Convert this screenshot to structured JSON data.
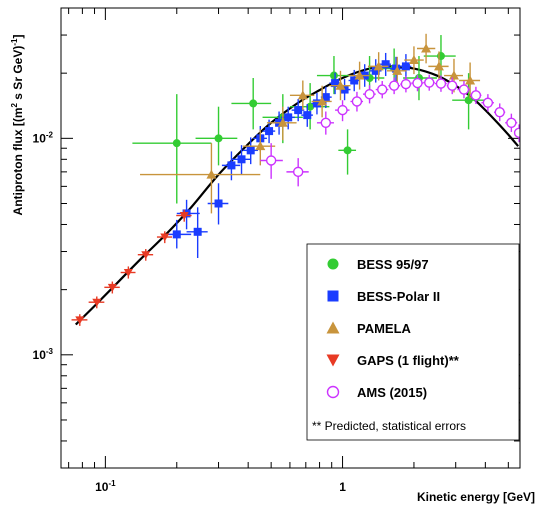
{
  "chart_data": {
    "type": "scatter",
    "title": "",
    "xlabel": "Kinetic energy [GeV]",
    "ylabel_main": "Antiproton flux [(m",
    "ylabel_sup": "2",
    "ylabel_tail": " s Sr GeV)",
    "ylabel_sup2": "-1",
    "ylabel_end": "]",
    "x_scale": "log",
    "y_scale": "log",
    "xlim": [
      0.065,
      5.6
    ],
    "ylim": [
      0.0003,
      0.04
    ],
    "x_ticks": [
      {
        "value": 0.1,
        "base": "10",
        "exp": "-1"
      },
      {
        "value": 1,
        "base": "1",
        "exp": ""
      }
    ],
    "y_ticks": [
      {
        "value": 0.01,
        "base": "10",
        "exp": "-2"
      },
      {
        "value": 0.001,
        "base": "10",
        "exp": "-3"
      }
    ],
    "legend_placement": "bottom-right",
    "legend_note": "** Predicted, statistical errors",
    "model_curve": {
      "color": "#000000",
      "x": [
        0.075,
        0.09,
        0.11,
        0.14,
        0.18,
        0.23,
        0.3,
        0.4,
        0.5,
        0.65,
        0.8,
        1.0,
        1.3,
        1.6,
        2.0,
        2.5,
        3.0,
        3.5,
        4.0,
        4.5,
        5.0,
        5.5
      ],
      "y": [
        0.00138,
        0.00168,
        0.0021,
        0.00275,
        0.0036,
        0.0048,
        0.0068,
        0.0094,
        0.0118,
        0.0146,
        0.0167,
        0.019,
        0.021,
        0.0215,
        0.021,
        0.0195,
        0.0175,
        0.0155,
        0.0135,
        0.0118,
        0.0104,
        0.0092
      ]
    },
    "series": [
      {
        "name": "BESS 95/97",
        "marker": "circle",
        "color": "#33cc33",
        "points": [
          {
            "x": 0.2,
            "y": 0.0095,
            "xerr": [
              0.13,
              0.28
            ],
            "yerr": [
              0.005,
              0.016
            ]
          },
          {
            "x": 0.3,
            "y": 0.01,
            "xerr": [
              0.24,
              0.36
            ],
            "yerr": [
              0.0075,
              0.014
            ]
          },
          {
            "x": 0.42,
            "y": 0.0145,
            "xerr": [
              0.34,
              0.5
            ],
            "yerr": [
              0.011,
              0.019
            ]
          },
          {
            "x": 0.56,
            "y": 0.0125,
            "xerr": [
              0.46,
              0.68
            ],
            "yerr": [
              0.0095,
              0.016
            ]
          },
          {
            "x": 0.73,
            "y": 0.014,
            "xerr": [
              0.6,
              0.88
            ],
            "yerr": [
              0.011,
              0.018
            ]
          },
          {
            "x": 0.92,
            "y": 0.0195,
            "xerr": [
              0.78,
              1.08
            ],
            "yerr": [
              0.016,
              0.024
            ]
          },
          {
            "x": 1.05,
            "y": 0.0088,
            "xerr": [
              0.96,
              1.14
            ],
            "yerr": [
              0.0068,
              0.011
            ]
          },
          {
            "x": 1.3,
            "y": 0.019,
            "xerr": [
              1.1,
              1.5
            ],
            "yerr": [
              0.015,
              0.024
            ]
          },
          {
            "x": 1.65,
            "y": 0.021,
            "xerr": [
              1.4,
              1.9
            ],
            "yerr": [
              0.017,
              0.026
            ]
          },
          {
            "x": 2.1,
            "y": 0.019,
            "xerr": [
              1.8,
              2.5
            ],
            "yerr": [
              0.015,
              0.024
            ]
          },
          {
            "x": 2.6,
            "y": 0.024,
            "xerr": [
              2.2,
              3.0
            ],
            "yerr": [
              0.019,
              0.03
            ]
          },
          {
            "x": 3.4,
            "y": 0.015,
            "xerr": [
              2.9,
              4.0
            ],
            "yerr": [
              0.011,
              0.02
            ]
          }
        ]
      },
      {
        "name": "BESS-Polar II",
        "marker": "square",
        "color": "#1a3cff",
        "points": [
          {
            "x": 0.2,
            "y": 0.0036,
            "xerr": [
              0.18,
              0.23
            ],
            "yerr": [
              0.0031,
              0.0042
            ]
          },
          {
            "x": 0.22,
            "y": 0.0045,
            "xerr": [
              0.2,
              0.25
            ],
            "yerr": [
              0.0038,
              0.0052
            ]
          },
          {
            "x": 0.245,
            "y": 0.0037,
            "xerr": [
              0.22,
              0.27
            ],
            "yerr": [
              0.0028,
              0.0048
            ]
          },
          {
            "x": 0.3,
            "y": 0.005,
            "xerr": [
              0.27,
              0.33
            ],
            "yerr": [
              0.004,
              0.0062
            ]
          },
          {
            "x": 0.34,
            "y": 0.0075,
            "xerr": [
              0.31,
              0.37
            ],
            "yerr": [
              0.0064,
              0.0087
            ]
          },
          {
            "x": 0.375,
            "y": 0.008,
            "xerr": [
              0.34,
              0.41
            ],
            "yerr": [
              0.0068,
              0.0093
            ]
          },
          {
            "x": 0.41,
            "y": 0.0088,
            "xerr": [
              0.38,
              0.44
            ],
            "yerr": [
              0.0076,
              0.0101
            ]
          },
          {
            "x": 0.45,
            "y": 0.01,
            "xerr": [
              0.42,
              0.48
            ],
            "yerr": [
              0.0087,
              0.0114
            ]
          },
          {
            "x": 0.49,
            "y": 0.0108,
            "xerr": [
              0.46,
              0.52
            ],
            "yerr": [
              0.0095,
              0.0122
            ]
          },
          {
            "x": 0.54,
            "y": 0.0118,
            "xerr": [
              0.51,
              0.57
            ],
            "yerr": [
              0.0104,
              0.0133
            ]
          },
          {
            "x": 0.59,
            "y": 0.0125,
            "xerr": [
              0.55,
              0.63
            ],
            "yerr": [
              0.011,
              0.014
            ]
          },
          {
            "x": 0.65,
            "y": 0.0135,
            "xerr": [
              0.61,
              0.69
            ],
            "yerr": [
              0.012,
              0.0152
            ]
          },
          {
            "x": 0.71,
            "y": 0.0128,
            "xerr": [
              0.67,
              0.75
            ],
            "yerr": [
              0.0113,
              0.0144
            ]
          },
          {
            "x": 0.78,
            "y": 0.0145,
            "xerr": [
              0.74,
              0.82
            ],
            "yerr": [
              0.0129,
              0.0162
            ]
          },
          {
            "x": 0.85,
            "y": 0.0155,
            "xerr": [
              0.81,
              0.9
            ],
            "yerr": [
              0.0138,
              0.0173
            ]
          },
          {
            "x": 0.93,
            "y": 0.018,
            "xerr": [
              0.88,
              0.98
            ],
            "yerr": [
              0.016,
              0.0201
            ]
          },
          {
            "x": 1.02,
            "y": 0.0168,
            "xerr": [
              0.97,
              1.08
            ],
            "yerr": [
              0.015,
              0.0188
            ]
          },
          {
            "x": 1.12,
            "y": 0.0185,
            "xerr": [
              1.06,
              1.18
            ],
            "yerr": [
              0.0165,
              0.0207
            ]
          },
          {
            "x": 1.24,
            "y": 0.0195,
            "xerr": [
              1.18,
              1.3
            ],
            "yerr": [
              0.0173,
              0.022
            ]
          },
          {
            "x": 1.38,
            "y": 0.0205,
            "xerr": [
              1.3,
              1.46
            ],
            "yerr": [
              0.0181,
              0.0232
            ]
          },
          {
            "x": 1.52,
            "y": 0.022,
            "xerr": [
              1.44,
              1.6
            ],
            "yerr": [
              0.0194,
              0.0248
            ]
          },
          {
            "x": 1.68,
            "y": 0.021,
            "xerr": [
              1.58,
              1.78
            ],
            "yerr": [
              0.0184,
              0.0238
            ]
          },
          {
            "x": 1.85,
            "y": 0.0215,
            "xerr": [
              1.75,
              1.95
            ],
            "yerr": [
              0.0187,
              0.0245
            ]
          }
        ]
      },
      {
        "name": "PAMELA",
        "marker": "triangle-up",
        "color": "#c8943c",
        "points": [
          {
            "x": 0.28,
            "y": 0.0068,
            "xerr": [
              0.14,
              0.45
            ],
            "yerr": [
              0.0045,
              0.0095
            ]
          },
          {
            "x": 0.45,
            "y": 0.0092,
            "xerr": [
              0.38,
              0.52
            ],
            "yerr": [
              0.0075,
              0.011
            ]
          },
          {
            "x": 0.56,
            "y": 0.0118,
            "xerr": [
              0.48,
              0.64
            ],
            "yerr": [
              0.0098,
              0.014
            ]
          },
          {
            "x": 0.68,
            "y": 0.0158,
            "xerr": [
              0.6,
              0.76
            ],
            "yerr": [
              0.0135,
              0.0185
            ]
          },
          {
            "x": 0.82,
            "y": 0.0148,
            "xerr": [
              0.74,
              0.9
            ],
            "yerr": [
              0.0125,
              0.0175
            ]
          },
          {
            "x": 0.98,
            "y": 0.0175,
            "xerr": [
              0.88,
              1.08
            ],
            "yerr": [
              0.015,
              0.0205
            ]
          },
          {
            "x": 1.18,
            "y": 0.0195,
            "xerr": [
              1.06,
              1.3
            ],
            "yerr": [
              0.0168,
              0.0226
            ]
          },
          {
            "x": 1.42,
            "y": 0.0215,
            "xerr": [
              1.28,
              1.56
            ],
            "yerr": [
              0.0185,
              0.025
            ]
          },
          {
            "x": 1.7,
            "y": 0.0205,
            "xerr": [
              1.54,
              1.86
            ],
            "yerr": [
              0.0176,
              0.0238
            ]
          },
          {
            "x": 2.0,
            "y": 0.023,
            "xerr": [
              1.82,
              2.2
            ],
            "yerr": [
              0.0198,
              0.0266
            ]
          },
          {
            "x": 2.25,
            "y": 0.026,
            "xerr": [
              2.06,
              2.46
            ],
            "yerr": [
              0.0222,
              0.0304
            ]
          },
          {
            "x": 2.55,
            "y": 0.0215,
            "xerr": [
              2.3,
              2.8
            ],
            "yerr": [
              0.0183,
              0.0252
            ]
          },
          {
            "x": 2.95,
            "y": 0.0195,
            "xerr": [
              2.68,
              3.22
            ],
            "yerr": [
              0.0163,
              0.0233
            ]
          },
          {
            "x": 3.45,
            "y": 0.0185,
            "xerr": [
              3.1,
              3.8
            ],
            "yerr": [
              0.0153,
              0.0224
            ]
          }
        ]
      },
      {
        "name": "GAPS (1 flight)**",
        "marker": "triangle-down",
        "color": "#e83a24",
        "points": [
          {
            "x": 0.078,
            "y": 0.00145,
            "xerr": [
              0.072,
              0.084
            ],
            "yerr": [
              0.00136,
              0.00154
            ]
          },
          {
            "x": 0.092,
            "y": 0.00175,
            "xerr": [
              0.085,
              0.099
            ],
            "yerr": [
              0.00164,
              0.00186
            ]
          },
          {
            "x": 0.107,
            "y": 0.00205,
            "xerr": [
              0.099,
              0.115
            ],
            "yerr": [
              0.00192,
              0.00218
            ]
          },
          {
            "x": 0.125,
            "y": 0.0024,
            "xerr": [
              0.116,
              0.134
            ],
            "yerr": [
              0.00225,
              0.00256
            ]
          },
          {
            "x": 0.148,
            "y": 0.0029,
            "xerr": [
              0.137,
              0.159
            ],
            "yerr": [
              0.00272,
              0.00308
            ]
          },
          {
            "x": 0.178,
            "y": 0.0035,
            "xerr": [
              0.165,
              0.191
            ],
            "yerr": [
              0.00328,
              0.00372
            ]
          },
          {
            "x": 0.215,
            "y": 0.0044,
            "xerr": [
              0.199,
              0.231
            ],
            "yerr": [
              0.00412,
              0.00468
            ]
          }
        ]
      },
      {
        "name": "AMS (2015)",
        "marker": "circle-open",
        "color": "#cc33ff",
        "points": [
          {
            "x": 0.5,
            "y": 0.0079,
            "xerr": [
              0.45,
              0.56
            ],
            "yerr": [
              0.0065,
              0.0095
            ]
          },
          {
            "x": 0.65,
            "y": 0.007,
            "xerr": [
              0.58,
              0.72
            ],
            "yerr": [
              0.006,
              0.0081
            ]
          },
          {
            "x": 0.85,
            "y": 0.0118,
            "xerr": [
              0.78,
              0.92
            ],
            "yerr": [
              0.0104,
              0.0133
            ]
          },
          {
            "x": 1.0,
            "y": 0.0135,
            "xerr": [
              0.93,
              1.07
            ],
            "yerr": [
              0.012,
              0.015
            ]
          },
          {
            "x": 1.15,
            "y": 0.0148,
            "xerr": [
              1.08,
              1.22
            ],
            "yerr": [
              0.0133,
              0.0164
            ]
          },
          {
            "x": 1.3,
            "y": 0.016,
            "xerr": [
              1.22,
              1.38
            ],
            "yerr": [
              0.0145,
              0.0176
            ]
          },
          {
            "x": 1.47,
            "y": 0.0168,
            "xerr": [
              1.38,
              1.56
            ],
            "yerr": [
              0.0153,
              0.0184
            ]
          },
          {
            "x": 1.65,
            "y": 0.0175,
            "xerr": [
              1.56,
              1.75
            ],
            "yerr": [
              0.016,
              0.0191
            ]
          },
          {
            "x": 1.85,
            "y": 0.0178,
            "xerr": [
              1.75,
              1.95
            ],
            "yerr": [
              0.0163,
              0.0194
            ]
          },
          {
            "x": 2.07,
            "y": 0.018,
            "xerr": [
              1.95,
              2.19
            ],
            "yerr": [
              0.0165,
              0.0196
            ]
          },
          {
            "x": 2.32,
            "y": 0.0181,
            "xerr": [
              2.19,
              2.45
            ],
            "yerr": [
              0.0166,
              0.0197
            ]
          },
          {
            "x": 2.6,
            "y": 0.0179,
            "xerr": [
              2.45,
              2.75
            ],
            "yerr": [
              0.0164,
              0.0195
            ]
          },
          {
            "x": 2.9,
            "y": 0.0175,
            "xerr": [
              2.75,
              3.05
            ],
            "yerr": [
              0.016,
              0.0191
            ]
          },
          {
            "x": 3.25,
            "y": 0.0168,
            "xerr": [
              3.05,
              3.45
            ],
            "yerr": [
              0.0153,
              0.0184
            ]
          },
          {
            "x": 3.65,
            "y": 0.0158,
            "xerr": [
              3.45,
              3.85
            ],
            "yerr": [
              0.0144,
              0.0173
            ]
          },
          {
            "x": 4.1,
            "y": 0.0146,
            "xerr": [
              3.85,
              4.35
            ],
            "yerr": [
              0.0133,
              0.016
            ]
          },
          {
            "x": 4.6,
            "y": 0.0132,
            "xerr": [
              4.35,
              4.85
            ],
            "yerr": [
              0.012,
              0.0145
            ]
          },
          {
            "x": 5.15,
            "y": 0.0118,
            "xerr": [
              4.85,
              5.45
            ],
            "yerr": [
              0.0107,
              0.013
            ]
          },
          {
            "x": 5.55,
            "y": 0.0106,
            "xerr": [
              5.45,
              5.6
            ],
            "yerr": [
              0.0096,
              0.0116
            ]
          }
        ]
      }
    ]
  }
}
